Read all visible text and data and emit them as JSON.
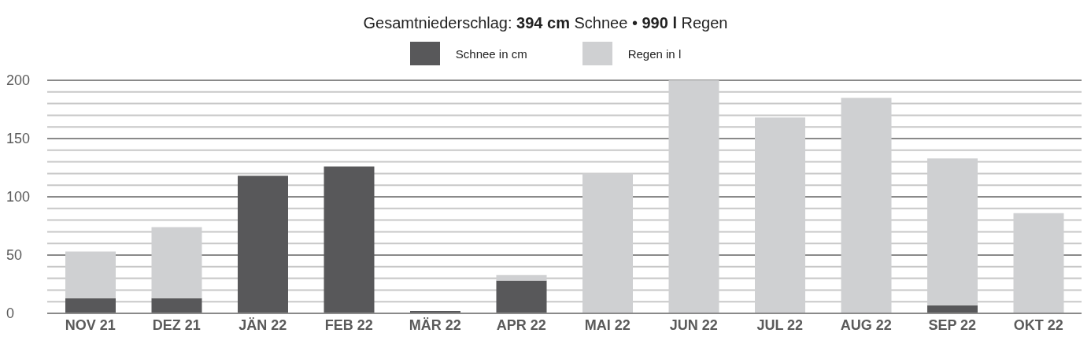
{
  "chart_data": {
    "type": "bar",
    "title": "Gesamtniederschlag: 394 cm Schnee • 990 l Regen",
    "categories": [
      "NOV 21",
      "DEZ 21",
      "JÄN 22",
      "FEB 22",
      "MÄR 22",
      "APR 22",
      "MAI 22",
      "JUN 22",
      "JUL 22",
      "AUG 22",
      "SEP 22",
      "OKT 22"
    ],
    "series": [
      {
        "name": "Schnee in cm",
        "color": "#58585a",
        "values": [
          13,
          13,
          118,
          126,
          2,
          28,
          0,
          0,
          0,
          0,
          7,
          0
        ]
      },
      {
        "name": "Regen in l",
        "color": "#cfd0d2",
        "values": [
          40,
          61,
          0,
          0,
          0,
          5,
          120,
          200,
          168,
          185,
          126,
          86
        ]
      }
    ],
    "stacked": true,
    "ylim": [
      0,
      200
    ],
    "yticks": [
      0,
      {
        "value": 10,
        "label": null
      },
      {
        "value": 20,
        "label": null
      },
      {
        "value": 30,
        "label": null
      },
      {
        "value": 40,
        "label": null
      },
      50,
      {
        "value": 60,
        "label": null
      },
      {
        "value": 70,
        "label": null
      },
      {
        "value": 80,
        "label": null
      },
      {
        "value": 90,
        "label": null
      },
      100,
      {
        "value": 110,
        "label": null
      },
      {
        "value": 120,
        "label": null
      },
      {
        "value": 130,
        "label": null
      },
      {
        "value": 140,
        "label": null
      },
      150,
      {
        "value": 160,
        "label": null
      },
      {
        "value": 170,
        "label": null
      },
      {
        "value": 180,
        "label": null
      },
      {
        "value": 190,
        "label": null
      },
      200
    ],
    "grid": "y",
    "legend": "top"
  }
}
